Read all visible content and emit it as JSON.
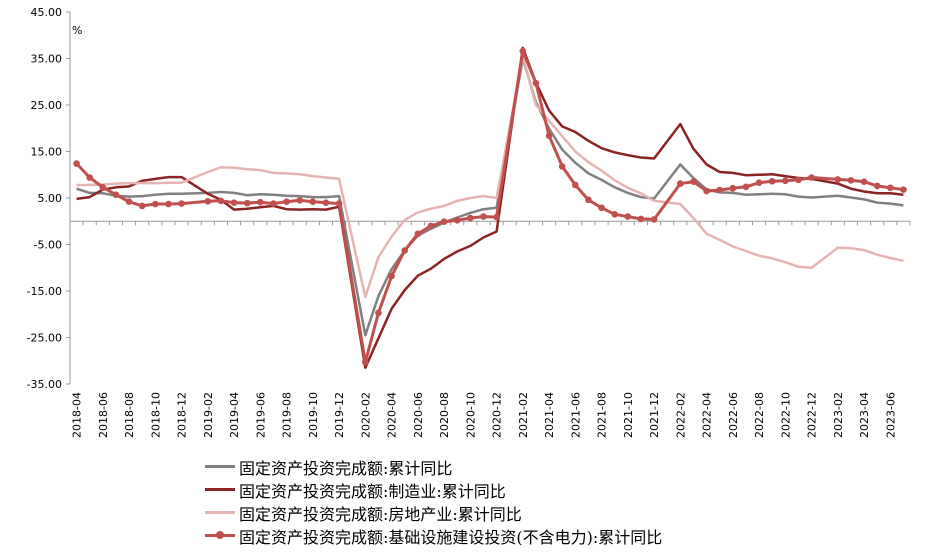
{
  "chart_data": {
    "type": "line",
    "unit_label": "%",
    "ylim": [
      -35,
      45
    ],
    "yticks": [
      "45.00",
      "35.00",
      "25.00",
      "15.00",
      "5.00",
      "-5.00",
      "-15.00",
      "-25.00",
      "-35.00"
    ],
    "x": [
      "2018-04",
      "2018-05",
      "2018-06",
      "2018-07",
      "2018-08",
      "2018-09",
      "2018-10",
      "2018-11",
      "2018-12",
      "2019-01",
      "2019-02",
      "2019-03",
      "2019-04",
      "2019-05",
      "2019-06",
      "2019-07",
      "2019-08",
      "2019-09",
      "2019-10",
      "2019-11",
      "2019-12",
      "2020-01",
      "2020-02",
      "2020-03",
      "2020-04",
      "2020-05",
      "2020-06",
      "2020-07",
      "2020-08",
      "2020-09",
      "2020-10",
      "2020-11",
      "2020-12",
      "2021-01",
      "2021-02",
      "2021-03",
      "2021-04",
      "2021-05",
      "2021-06",
      "2021-07",
      "2021-08",
      "2021-09",
      "2021-10",
      "2021-11",
      "2021-12",
      "2022-01",
      "2022-02",
      "2022-03",
      "2022-04",
      "2022-05",
      "2022-06",
      "2022-07",
      "2022-08",
      "2022-09",
      "2022-10",
      "2022-11",
      "2022-12",
      "2023-01",
      "2023-02",
      "2023-03",
      "2023-04",
      "2023-05",
      "2023-06",
      "2023-07"
    ],
    "xtick_labels": [
      "2018-04",
      "2018-06",
      "2018-08",
      "2018-10",
      "2018-12",
      "2019-02",
      "2019-04",
      "2019-06",
      "2019-08",
      "2019-10",
      "2019-12",
      "2020-02",
      "2020-04",
      "2020-06",
      "2020-08",
      "2020-10",
      "2020-12",
      "2021-02",
      "2021-04",
      "2021-06",
      "2021-08",
      "2021-10",
      "2021-12",
      "2022-02",
      "2022-04",
      "2022-06",
      "2022-08",
      "2022-10",
      "2022-12",
      "2023-02",
      "2023-04",
      "2023-06"
    ],
    "grid": false,
    "legend_position": "bottom",
    "series": [
      {
        "name": "固定资产投资完成额:累计同比",
        "color": "#808080",
        "marker": false,
        "values": [
          7.0,
          6.1,
          6.0,
          5.5,
          5.3,
          5.4,
          5.7,
          5.9,
          5.9,
          null,
          6.1,
          6.3,
          6.1,
          5.6,
          5.8,
          5.7,
          5.5,
          5.4,
          5.2,
          5.2,
          5.4,
          null,
          -24.5,
          -16.1,
          -10.3,
          -6.3,
          -3.1,
          -1.6,
          -0.3,
          0.8,
          1.8,
          2.6,
          2.9,
          null,
          35.0,
          25.6,
          19.9,
          15.4,
          12.6,
          10.3,
          8.9,
          7.3,
          6.1,
          5.2,
          4.9,
          null,
          12.2,
          9.3,
          6.8,
          6.2,
          6.1,
          5.7,
          5.8,
          5.9,
          5.8,
          5.3,
          5.1,
          null,
          5.5,
          5.1,
          4.7,
          4.0,
          3.8,
          3.4
        ]
      },
      {
        "name": "固定资产投资完成额:制造业:累计同比",
        "color": "#8B2323",
        "marker": false,
        "values": [
          4.8,
          5.2,
          6.8,
          7.3,
          7.5,
          8.7,
          9.1,
          9.5,
          9.5,
          null,
          5.9,
          4.6,
          2.5,
          2.7,
          3.0,
          3.3,
          2.6,
          2.5,
          2.6,
          2.5,
          3.1,
          null,
          -31.5,
          -25.2,
          -18.8,
          -14.8,
          -11.7,
          -10.2,
          -8.1,
          -6.5,
          -5.3,
          -3.5,
          -2.2,
          null,
          37.3,
          29.8,
          23.8,
          20.4,
          19.2,
          17.3,
          15.7,
          14.8,
          14.2,
          13.7,
          13.5,
          null,
          20.9,
          15.6,
          12.2,
          10.6,
          10.4,
          9.9,
          10.0,
          10.1,
          9.7,
          9.3,
          9.1,
          null,
          8.1,
          7.0,
          6.4,
          6.0,
          6.0,
          5.7
        ]
      },
      {
        "name": "固定资产投资完成额:房地产业:累计同比",
        "color": "#E6B3B3",
        "marker": false,
        "values": [
          7.8,
          7.8,
          7.9,
          8.1,
          8.2,
          8.2,
          8.2,
          8.3,
          8.3,
          null,
          10.6,
          11.6,
          11.5,
          11.2,
          11.0,
          10.4,
          10.3,
          10.1,
          9.7,
          9.4,
          9.1,
          null,
          -16.3,
          -7.7,
          -3.3,
          0.3,
          1.9,
          2.7,
          3.3,
          4.4,
          5.0,
          5.4,
          5.0,
          null,
          35.5,
          25.0,
          21.6,
          18.3,
          15.0,
          12.7,
          10.9,
          8.8,
          7.2,
          6.0,
          4.4,
          null,
          3.7,
          0.7,
          -2.7,
          -4.0,
          -5.4,
          -6.4,
          -7.4,
          -8.0,
          -8.8,
          -9.8,
          -10.0,
          null,
          -5.7,
          -5.8,
          -6.2,
          -7.2,
          -7.9,
          -8.5
        ]
      },
      {
        "name": "固定资产投资完成额:基础设施建设投资(不含电力):累计同比",
        "color": "#C0504D",
        "marker": true,
        "values": [
          12.4,
          9.4,
          7.3,
          5.7,
          4.2,
          3.3,
          3.7,
          3.7,
          3.8,
          null,
          4.3,
          4.4,
          4.0,
          3.9,
          4.1,
          3.8,
          4.2,
          4.5,
          4.2,
          4.0,
          3.8,
          null,
          -30.3,
          -19.7,
          -11.8,
          -6.3,
          -2.7,
          -1.0,
          -0.1,
          0.2,
          0.7,
          1.0,
          0.9,
          null,
          36.6,
          29.7,
          18.4,
          11.8,
          7.8,
          4.6,
          2.9,
          1.5,
          1.0,
          0.5,
          0.4,
          null,
          8.1,
          8.5,
          6.5,
          6.7,
          7.1,
          7.4,
          8.3,
          8.6,
          8.7,
          8.9,
          9.4,
          null,
          9.0,
          8.8,
          8.5,
          7.6,
          7.2,
          6.8
        ]
      }
    ]
  }
}
